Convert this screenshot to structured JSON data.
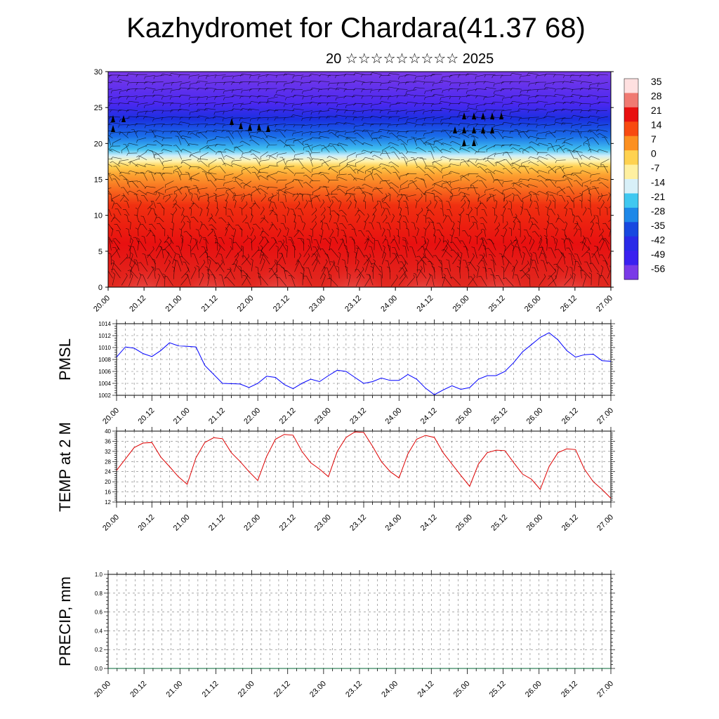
{
  "page": {
    "title": "Kazhydromet for Chardara(41.37 68)",
    "subtitle": "20 ☆☆☆☆☆☆☆☆☆ 2025"
  },
  "chart_data": [
    {
      "type": "heatmap",
      "name": "temperature-cross-section",
      "x_ticks": [
        "20.00",
        "20.12",
        "21.00",
        "21.12",
        "22.00",
        "22.12",
        "23.00",
        "23.12",
        "24.00",
        "24.12",
        "25.00",
        "25.12",
        "26.00",
        "26.12",
        "27.00"
      ],
      "xlim": [
        0,
        168
      ],
      "ylim": [
        0,
        30
      ],
      "y_ticks": [
        0,
        5,
        10,
        15,
        20,
        25,
        30
      ],
      "colorbar": {
        "labels": [
          "35",
          "28",
          "21",
          "14",
          "7",
          "0",
          "-7",
          "-14",
          "-21",
          "-28",
          "-35",
          "-42",
          "-49",
          "-56"
        ],
        "colors": [
          "#ffe0e0",
          "#f07a72",
          "#e81010",
          "#f84a10",
          "#fc9020",
          "#ffd250",
          "#fff0a0",
          "#d8f0f8",
          "#40c8f0",
          "#1e88e8",
          "#1848e0",
          "#2a2ae8",
          "#3a20f0",
          "#7a3ae8"
        ]
      },
      "overlay": "wind barbs"
    },
    {
      "type": "line",
      "name": "pmsl",
      "ylabel": "PMSL",
      "ylim": [
        1002,
        1014
      ],
      "y_ticks": [
        1002,
        1004,
        1006,
        1008,
        1010,
        1012,
        1014
      ],
      "x_ticks": [
        "20.00",
        "20.12",
        "21.00",
        "21.12",
        "22.00",
        "22.12",
        "23.00",
        "23.12",
        "24.00",
        "24.12",
        "25.00",
        "25.12",
        "26.00",
        "26.12",
        "27.00"
      ],
      "xlim": [
        0,
        168
      ],
      "color": "#0000ff",
      "series": [
        {
          "values": [
            [
              0,
              1008.4
            ],
            [
              3,
              1010.1
            ],
            [
              6,
              1009.9
            ],
            [
              9,
              1009.0
            ],
            [
              12,
              1008.5
            ],
            [
              15,
              1009.5
            ],
            [
              18,
              1010.8
            ],
            [
              21,
              1010.3
            ],
            [
              24,
              1010.2
            ],
            [
              27,
              1010.1
            ],
            [
              30,
              1007.0
            ],
            [
              36,
              1004.0
            ],
            [
              42,
              1003.9
            ],
            [
              45,
              1003.3
            ],
            [
              48,
              1004.0
            ],
            [
              51,
              1005.2
            ],
            [
              54,
              1005.0
            ],
            [
              57,
              1003.8
            ],
            [
              60,
              1003.1
            ],
            [
              63,
              1004.0
            ],
            [
              66,
              1004.7
            ],
            [
              69,
              1004.3
            ],
            [
              72,
              1005.3
            ],
            [
              75,
              1006.2
            ],
            [
              78,
              1006.0
            ],
            [
              81,
              1005.0
            ],
            [
              84,
              1004.0
            ],
            [
              87,
              1004.3
            ],
            [
              90,
              1004.9
            ],
            [
              93,
              1004.5
            ],
            [
              96,
              1004.5
            ],
            [
              99,
              1005.5
            ],
            [
              102,
              1004.7
            ],
            [
              105,
              1003.2
            ],
            [
              108,
              1002.1
            ],
            [
              111,
              1002.9
            ],
            [
              114,
              1003.6
            ],
            [
              117,
              1003.0
            ],
            [
              120,
              1003.3
            ],
            [
              123,
              1004.7
            ],
            [
              126,
              1005.3
            ],
            [
              129,
              1005.3
            ],
            [
              132,
              1006.0
            ],
            [
              135,
              1007.5
            ],
            [
              138,
              1009.3
            ],
            [
              141,
              1010.5
            ],
            [
              144,
              1011.7
            ],
            [
              147,
              1012.5
            ],
            [
              150,
              1011.3
            ],
            [
              153,
              1009.5
            ],
            [
              156,
              1008.4
            ],
            [
              159,
              1008.8
            ],
            [
              162,
              1008.9
            ],
            [
              165,
              1007.8
            ],
            [
              168,
              1007.7
            ]
          ]
        }
      ]
    },
    {
      "type": "line",
      "name": "temp-2m",
      "ylabel": "TEMP at 2 M",
      "ylim": [
        12,
        40
      ],
      "y_ticks": [
        12,
        16,
        20,
        24,
        28,
        32,
        36,
        40
      ],
      "x_ticks": [
        "20.00",
        "20.12",
        "21.00",
        "21.12",
        "22.00",
        "22.12",
        "23.00",
        "23.12",
        "24.00",
        "24.12",
        "25.00",
        "25.12",
        "26.00",
        "26.12",
        "27.00"
      ],
      "xlim": [
        0,
        168
      ],
      "color": "#dd0000",
      "series": [
        {
          "values": [
            [
              0,
              24.5
            ],
            [
              6,
              33.5
            ],
            [
              9,
              35.3
            ],
            [
              12,
              35.5
            ],
            [
              15,
              29.8
            ],
            [
              18,
              26.0
            ],
            [
              21,
              22.0
            ],
            [
              24,
              19.0
            ],
            [
              27,
              29.5
            ],
            [
              30,
              35.5
            ],
            [
              33,
              37.4
            ],
            [
              36,
              37.0
            ],
            [
              39,
              31.5
            ],
            [
              42,
              28.0
            ],
            [
              45,
              24.0
            ],
            [
              48,
              20.5
            ],
            [
              51,
              30.0
            ],
            [
              54,
              36.8
            ],
            [
              57,
              38.7
            ],
            [
              60,
              38.4
            ],
            [
              63,
              32.0
            ],
            [
              66,
              27.5
            ],
            [
              69,
              25.0
            ],
            [
              72,
              22.0
            ],
            [
              75,
              32.0
            ],
            [
              78,
              37.5
            ],
            [
              81,
              39.7
            ],
            [
              84,
              39.5
            ],
            [
              87,
              34.0
            ],
            [
              90,
              28.0
            ],
            [
              93,
              24.0
            ],
            [
              96,
              21.5
            ],
            [
              99,
              31.0
            ],
            [
              102,
              36.8
            ],
            [
              105,
              38.3
            ],
            [
              108,
              37.5
            ],
            [
              111,
              31.5
            ],
            [
              114,
              27.0
            ],
            [
              117,
              22.5
            ],
            [
              120,
              18.2
            ],
            [
              123,
              27.0
            ],
            [
              126,
              31.5
            ],
            [
              129,
              32.5
            ],
            [
              132,
              32.3
            ],
            [
              135,
              27.5
            ],
            [
              138,
              23.0
            ],
            [
              141,
              21.0
            ],
            [
              144,
              17.0
            ],
            [
              147,
              26.0
            ],
            [
              150,
              31.5
            ],
            [
              153,
              33.0
            ],
            [
              156,
              32.7
            ],
            [
              159,
              25.0
            ],
            [
              162,
              20.0
            ],
            [
              165,
              17.0
            ],
            [
              168,
              13.5
            ]
          ]
        }
      ]
    },
    {
      "type": "line",
      "name": "precip",
      "ylabel": "PRECIP, mm",
      "ylim": [
        0,
        1
      ],
      "y_ticks": [
        "0.0",
        "0.2",
        "0.4",
        "0.6",
        "0.8",
        "1.0"
      ],
      "x_ticks": [
        "20.00",
        "20.12",
        "21.00",
        "21.12",
        "22.00",
        "22.12",
        "23.00",
        "23.12",
        "24.00",
        "24.12",
        "25.00",
        "25.12",
        "26.00",
        "26.12",
        "27.00"
      ],
      "xlim": [
        0,
        168
      ],
      "color": "#006633",
      "series": [
        {
          "values": [
            [
              0,
              0
            ],
            [
              168,
              0
            ]
          ]
        }
      ]
    }
  ]
}
